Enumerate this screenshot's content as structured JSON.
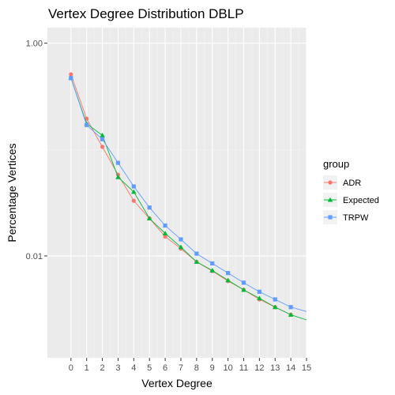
{
  "chart_data": {
    "type": "line",
    "title": "Vertex Degree Distribution DBLP",
    "xlabel": "Vertex Degree",
    "ylabel": "Percentage Vertices",
    "x_scale": "linear",
    "y_scale": "log10",
    "xlim": [
      -1.5,
      15
    ],
    "ylim": [
      0.0011,
      1.4
    ],
    "x_ticks": [
      0,
      1,
      2,
      3,
      4,
      5,
      6,
      7,
      8,
      9,
      10,
      11,
      12,
      13,
      14,
      15
    ],
    "y_ticks": [
      1.0,
      0.01
    ],
    "y_tick_labels": [
      "1.00",
      "0.01"
    ],
    "grid": true,
    "legend": {
      "title": "group",
      "position": "right"
    },
    "series": [
      {
        "name": "ADR",
        "color": "#F8766D",
        "marker": "circle",
        "x": [
          0,
          1,
          2,
          3,
          4,
          5,
          6,
          7,
          8,
          9,
          10,
          11,
          12,
          13,
          14
        ],
        "y": [
          0.51,
          0.195,
          0.106,
          0.058,
          0.033,
          0.0225,
          0.0152,
          0.0117,
          0.0088,
          0.0072,
          0.0058,
          0.0048,
          0.0039,
          0.0033,
          0.0028
        ]
      },
      {
        "name": "Expected",
        "color": "#00BA38",
        "marker": "triangle",
        "x": [
          0,
          1,
          2,
          3,
          4,
          5,
          6,
          7,
          8,
          9,
          10,
          11,
          12,
          13,
          14,
          15
        ],
        "y": [
          0.47,
          0.175,
          0.136,
          0.055,
          0.04,
          0.0225,
          0.0163,
          0.0121,
          0.0088,
          0.0073,
          0.0059,
          0.0048,
          0.004,
          0.0033,
          0.0028,
          0.0025
        ]
      },
      {
        "name": "TRPW",
        "color": "#619CFF",
        "marker": "square",
        "x": [
          0,
          1,
          2,
          3,
          4,
          5,
          6,
          7,
          8,
          9,
          10,
          11,
          12,
          13,
          14,
          15
        ],
        "y": [
          0.47,
          0.17,
          0.125,
          0.075,
          0.045,
          0.0285,
          0.0193,
          0.0143,
          0.0105,
          0.0085,
          0.0069,
          0.0056,
          0.0046,
          0.0039,
          0.0033,
          0.003
        ]
      }
    ]
  }
}
